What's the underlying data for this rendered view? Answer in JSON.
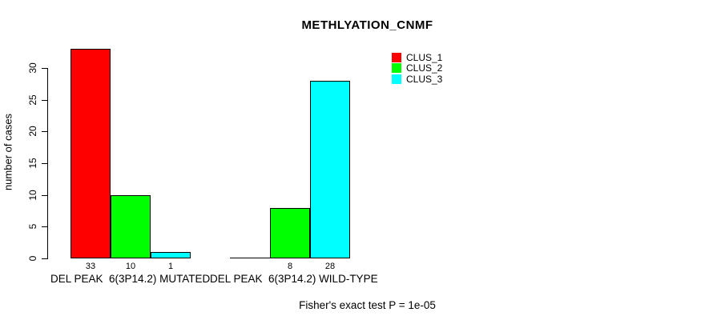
{
  "chart_data": {
    "type": "bar",
    "title": "METHLYATION_CNMF",
    "xlabel": "",
    "ylabel": "number of cases",
    "categories": [
      "DEL PEAK  6(3P14.2) MUTATED",
      "DEL PEAK  6(3P14.2) WILD-TYPE"
    ],
    "series": [
      {
        "name": "CLUS_1",
        "color": "#ff0000",
        "values": [
          33,
          0
        ]
      },
      {
        "name": "CLUS_2",
        "color": "#00ff00",
        "values": [
          10,
          8
        ]
      },
      {
        "name": "CLUS_3",
        "color": "#00ffff",
        "values": [
          1,
          28
        ]
      }
    ],
    "bar_value_labels": [
      [
        "33",
        "10",
        "1"
      ],
      [
        "",
        "8",
        "28"
      ]
    ],
    "y_ticks": [
      0,
      5,
      10,
      15,
      20,
      25,
      30
    ],
    "ylim": [
      0,
      33.5
    ],
    "grid": false,
    "legend_position": "top-right",
    "annotation": "Fisher's exact test P = 1e-05",
    "axis_color": "#000000",
    "background_color": "#ffffff"
  }
}
